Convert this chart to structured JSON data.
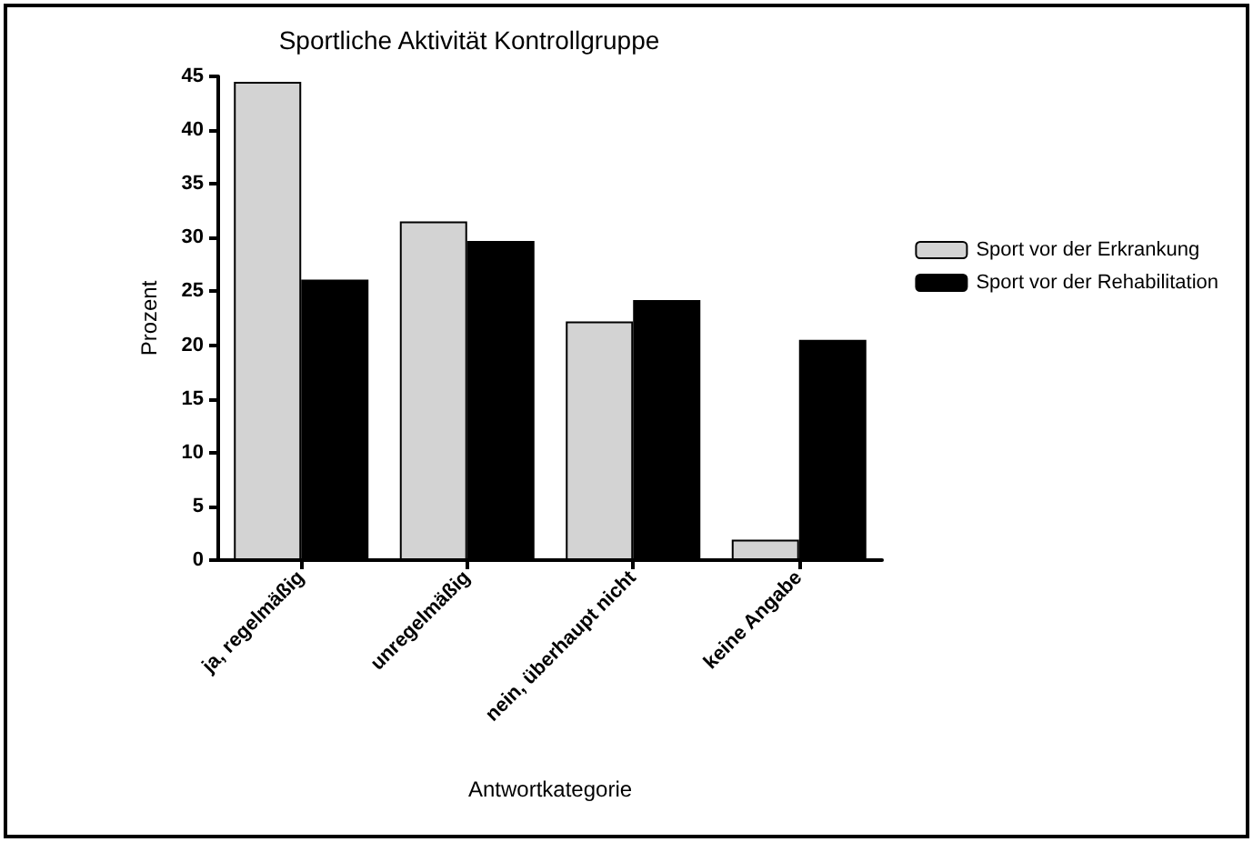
{
  "chart_data": {
    "type": "bar",
    "title": "Sportliche Aktivität Kontrollgruppe",
    "xlabel": "Antwortkategorie",
    "ylabel": "Prozent",
    "categories": [
      "ja, regelmäßig",
      "unregelmäßig",
      "nein, überhaupt nicht",
      "keine Angabe"
    ],
    "series": [
      {
        "name": "Sport vor der Erkrankung",
        "color": "#d3d3d3",
        "values": [
          44.5,
          31.5,
          22.2,
          1.9
        ]
      },
      {
        "name": "Sport vor der Rehabilitation",
        "color": "#000000",
        "values": [
          26.1,
          29.7,
          24.2,
          20.5
        ]
      }
    ],
    "ylim": [
      0,
      45
    ],
    "yticks": [
      0,
      5,
      10,
      15,
      20,
      25,
      30,
      35,
      40,
      45
    ],
    "grid": false,
    "legend": "right"
  }
}
